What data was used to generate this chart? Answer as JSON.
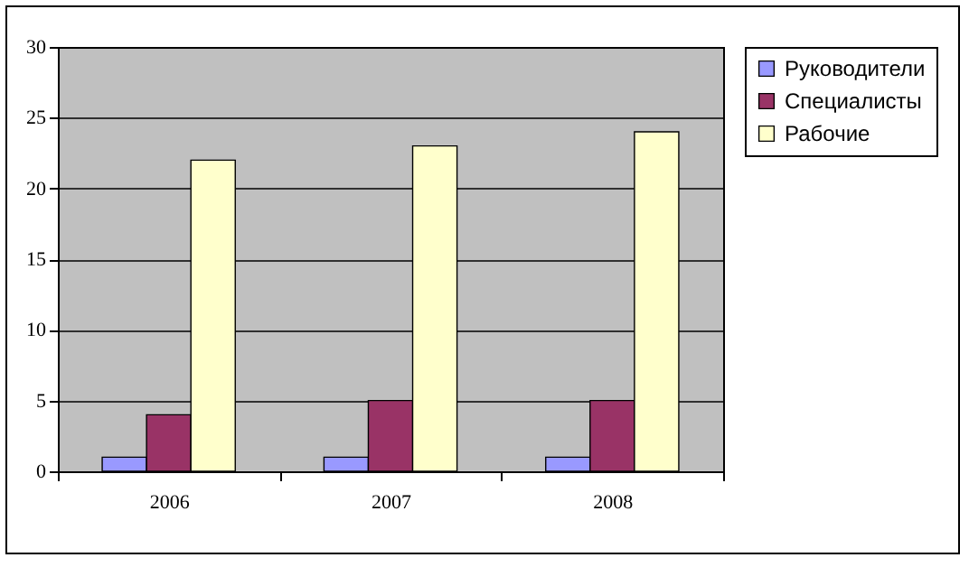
{
  "chart_data": {
    "type": "bar",
    "categories": [
      "2006",
      "2007",
      "2008"
    ],
    "series": [
      {
        "name": "Руководители",
        "color": "#9999ff",
        "values": [
          1,
          1,
          1
        ]
      },
      {
        "name": "Специалисты",
        "color": "#993366",
        "values": [
          4,
          5,
          5
        ]
      },
      {
        "name": "Рабочие",
        "color": "#ffffcc",
        "values": [
          22,
          23,
          24
        ]
      }
    ],
    "ylim": [
      0,
      30
    ],
    "yticks": [
      0,
      5,
      10,
      15,
      20,
      25,
      30
    ],
    "grid": "y",
    "legend": "right"
  }
}
